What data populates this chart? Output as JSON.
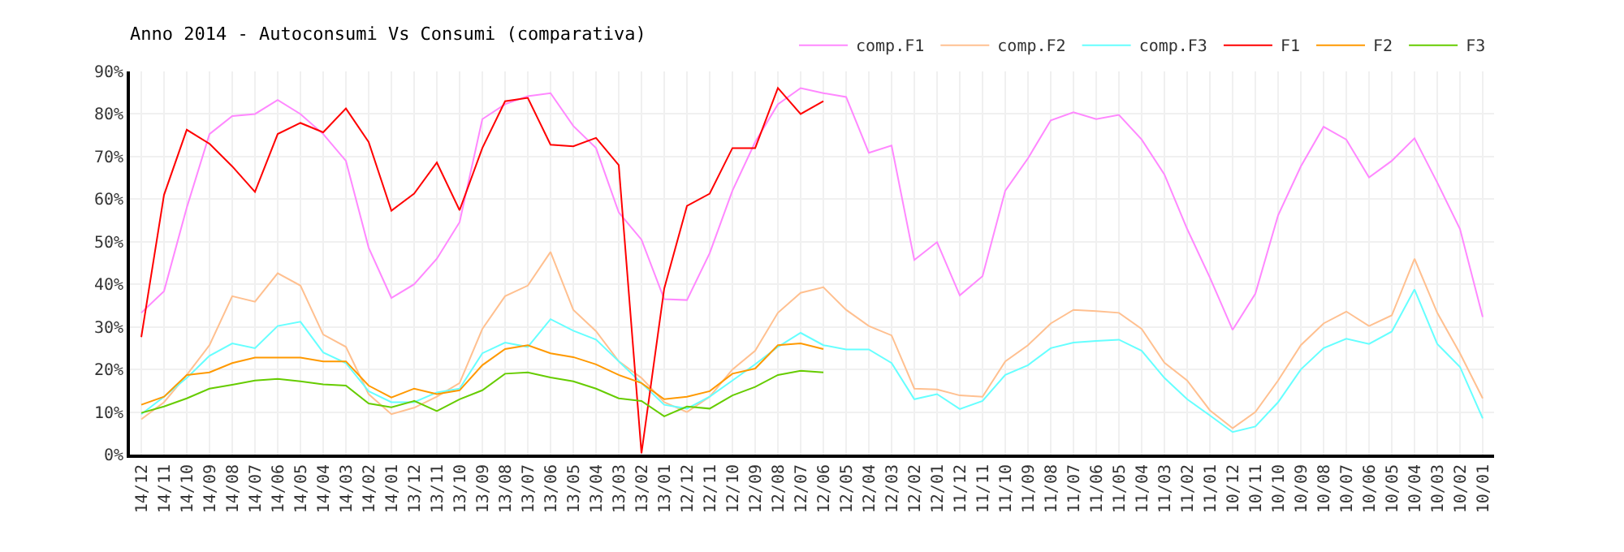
{
  "chart_data": {
    "type": "line",
    "title": "Anno 2014 - Autoconsumi Vs Consumi (comparativa)",
    "categories": [
      "14/12",
      "14/11",
      "14/10",
      "14/09",
      "14/08",
      "14/07",
      "14/06",
      "14/05",
      "14/04",
      "14/03",
      "14/02",
      "14/01",
      "13/12",
      "13/11",
      "13/10",
      "13/09",
      "13/08",
      "13/07",
      "13/06",
      "13/05",
      "13/04",
      "13/03",
      "13/02",
      "13/01",
      "12/12",
      "12/11",
      "12/10",
      "12/09",
      "12/08",
      "12/07",
      "12/06",
      "12/05",
      "12/04",
      "12/03",
      "12/02",
      "12/01",
      "11/12",
      "11/11",
      "11/10",
      "11/09",
      "11/08",
      "11/07",
      "11/06",
      "11/05",
      "11/04",
      "11/03",
      "11/02",
      "11/01",
      "10/12",
      "10/11",
      "10/10",
      "10/09",
      "10/08",
      "10/07",
      "10/06",
      "10/05",
      "10/04",
      "10/03",
      "10/02",
      "10/01"
    ],
    "series": [
      {
        "name": "comp.F1",
        "color": "#ff88ff",
        "values": [
          33.3,
          38.4,
          58,
          75.3,
          79.5,
          80,
          83.3,
          80,
          75.3,
          69,
          48.6,
          36.8,
          40,
          46,
          54.6,
          78.8,
          82.3,
          84.2,
          84.9,
          77.2,
          72,
          56.9,
          50.5,
          36.5,
          36.3,
          47.3,
          62,
          73.4,
          82.3,
          86.1,
          84.9,
          84,
          70.9,
          72.6,
          45.7,
          49.9,
          37.4,
          41.9,
          62,
          69.6,
          78.5,
          80.4,
          78.8,
          79.8,
          74,
          65.8,
          53,
          41.6,
          29.3,
          37.8,
          56.2,
          67.7,
          77,
          74,
          65.1,
          69,
          74.3,
          63.9,
          53,
          32.3
        ]
      },
      {
        "name": "comp.F2",
        "color": "#ffc090",
        "values": [
          8.3,
          12.3,
          18.7,
          25.7,
          37.2,
          35.9,
          42.6,
          39.7,
          28.2,
          25.3,
          14.2,
          9.5,
          11,
          13.6,
          16.8,
          29.5,
          37.2,
          39.7,
          47.6,
          34,
          29,
          21.9,
          18,
          12.3,
          10,
          13.6,
          20,
          24.4,
          33.3,
          38,
          39.3,
          34,
          30.2,
          28,
          15.5,
          15.3,
          13.9,
          13.6,
          21.9,
          25.7,
          30.8,
          34,
          33.7,
          33.3,
          29.5,
          21.6,
          17.4,
          10.4,
          6.2,
          10,
          17.4,
          25.7,
          30.8,
          33.6,
          30.2,
          32.7,
          46,
          33.3,
          23.8,
          13.2
        ]
      },
      {
        "name": "comp.F3",
        "color": "#66ffff",
        "values": [
          9.5,
          13.6,
          18,
          23.2,
          26.1,
          25,
          30.2,
          31.2,
          24,
          21.5,
          14.9,
          12.3,
          12.3,
          14.6,
          15.5,
          23.8,
          26.3,
          25.3,
          31.8,
          29.1,
          27,
          21.9,
          16.8,
          11.7,
          10.8,
          13.6,
          17.4,
          21.2,
          25.3,
          28.6,
          25.7,
          24.7,
          24.7,
          21.5,
          13,
          14.2,
          10.7,
          12.6,
          18.7,
          21,
          25,
          26.3,
          26.7,
          27,
          24.4,
          18,
          13,
          9.2,
          5.3,
          6.6,
          12.3,
          20,
          25,
          27.2,
          26,
          28.9,
          38.8,
          26,
          20.6,
          8.5
        ]
      },
      {
        "name": "F1",
        "color": "#ff0000",
        "values": [
          27.6,
          61,
          76.3,
          73,
          67.7,
          61.7,
          75.3,
          77.9,
          75.7,
          81.3,
          73.4,
          57.3,
          61.3,
          68.6,
          57.4,
          72,
          83,
          83.8,
          72.8,
          72.4,
          74.4,
          68,
          0.3,
          39,
          58.4,
          61.3,
          72,
          72,
          86.1,
          80,
          83,
          null,
          null,
          null,
          null,
          null,
          null,
          null,
          null,
          null,
          null,
          null,
          null,
          null,
          null,
          null,
          null,
          null,
          null,
          null,
          null,
          null,
          null,
          null,
          null,
          null,
          null,
          null,
          null,
          null
        ]
      },
      {
        "name": "F2",
        "color": "#ff9900",
        "values": [
          11.7,
          13.6,
          18.7,
          19.3,
          21.5,
          22.8,
          22.8,
          22.8,
          21.9,
          21.9,
          16.2,
          13.4,
          15.5,
          14.2,
          15.1,
          21,
          24.8,
          25.7,
          23.8,
          22.9,
          21.2,
          18.7,
          16.8,
          13,
          13.6,
          14.9,
          19,
          20.2,
          25.7,
          26.1,
          24.8,
          null,
          null,
          null,
          null,
          null,
          null,
          null,
          null,
          null,
          null,
          null,
          null,
          null,
          null,
          null,
          null,
          null,
          null,
          null,
          null,
          null,
          null,
          null,
          null,
          null,
          null,
          null,
          null,
          null
        ]
      },
      {
        "name": "F3",
        "color": "#66cc00",
        "values": [
          9.8,
          11.3,
          13.2,
          15.5,
          16.4,
          17.4,
          17.8,
          17.2,
          16.5,
          16.2,
          12,
          11.1,
          12.6,
          10.2,
          13,
          15.1,
          19,
          19.3,
          18.1,
          17.2,
          15.5,
          13.2,
          12.6,
          9,
          11.3,
          10.8,
          13.9,
          15.9,
          18.7,
          19.7,
          19.3,
          null,
          null,
          null,
          null,
          null,
          null,
          null,
          null,
          null,
          null,
          null,
          null,
          null,
          null,
          null,
          null,
          null,
          null,
          null,
          null,
          null,
          null,
          null,
          null,
          null,
          null,
          null,
          null,
          null
        ]
      }
    ],
    "ylim": [
      0,
      90
    ],
    "yticks": [
      {
        "value": 0,
        "label": "0%"
      },
      {
        "value": 10,
        "label": "10%"
      },
      {
        "value": 20,
        "label": "20%"
      },
      {
        "value": 30,
        "label": "30%"
      },
      {
        "value": 40,
        "label": "40%"
      },
      {
        "value": 50,
        "label": "50%"
      },
      {
        "value": 60,
        "label": "60%"
      },
      {
        "value": 70,
        "label": "70%"
      },
      {
        "value": 80,
        "label": "80%"
      },
      {
        "value": 90,
        "label": "90%"
      }
    ],
    "grid": true,
    "legend": "top right",
    "marker": "none",
    "line_style": "solid"
  }
}
